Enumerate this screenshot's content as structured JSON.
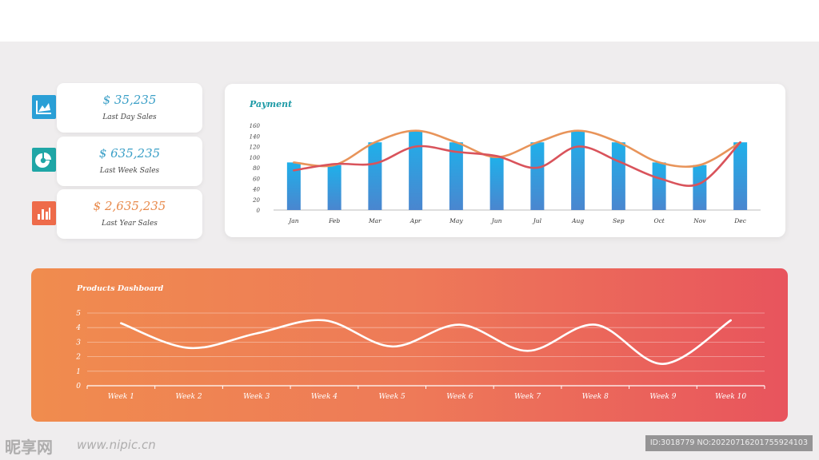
{
  "colors": {
    "blue_value": "#3a9fc7",
    "orange_value": "#e8894a",
    "icon_blue": "#2a9fd6",
    "icon_teal": "#1fa6a6",
    "icon_orange": "#ee6b4a",
    "bar_top": "#1fb0ea",
    "bar_bottom": "#4a86cf",
    "line_orange": "#e8945a",
    "line_red": "#d9535b",
    "payment_title": "#1d9aa6"
  },
  "kpis": [
    {
      "value": "$ 35,235",
      "label": "Last Day Sales",
      "icon": "line-chart-icon"
    },
    {
      "value": "$ 635,235",
      "label": "Last Week Sales",
      "icon": "pie-chart-icon"
    },
    {
      "value": "$ 2,635,235",
      "label": "Last Year Sales",
      "icon": "bar-chart-icon"
    }
  ],
  "chart_data": [
    {
      "type": "bar",
      "title": "Payment",
      "categories": [
        "Jan",
        "Feb",
        "Mar",
        "Apr",
        "May",
        "Jun",
        "Jul",
        "Aug",
        "Sep",
        "Oct",
        "Nov",
        "Dec"
      ],
      "yticks": [
        "0",
        "20",
        "40",
        "60",
        "80",
        "100",
        "120",
        "140",
        "160"
      ],
      "ylim": [
        0,
        160
      ],
      "series": [
        {
          "type": "bar",
          "values": [
            90,
            85,
            128,
            150,
            128,
            100,
            128,
            150,
            128,
            90,
            85,
            128
          ]
        },
        {
          "type": "line",
          "values": [
            90,
            85,
            128,
            150,
            128,
            100,
            128,
            150,
            128,
            90,
            85,
            128
          ]
        },
        {
          "type": "line",
          "values": [
            75,
            87,
            88,
            120,
            110,
            102,
            80,
            120,
            92,
            60,
            50,
            128
          ]
        }
      ],
      "grid": false
    },
    {
      "type": "line",
      "title": "Products Dashboard",
      "categories": [
        "Week 1",
        "Week 2",
        "Week 3",
        "Week 4",
        "Week 5",
        "Week 6",
        "Week 7",
        "Week 8",
        "Week 9",
        "Week 10"
      ],
      "yticks": [
        "0",
        "1",
        "2",
        "3",
        "4",
        "5"
      ],
      "ylim": [
        0,
        5
      ],
      "series": [
        {
          "values": [
            4.3,
            2.6,
            3.6,
            4.5,
            2.7,
            4.2,
            2.4,
            4.2,
            1.5,
            4.5
          ]
        }
      ],
      "grid": true
    }
  ],
  "watermark": {
    "logo": "昵享网",
    "site": "www.nipic.cn",
    "id": "ID:3018779 NO:20220716201755924103"
  }
}
